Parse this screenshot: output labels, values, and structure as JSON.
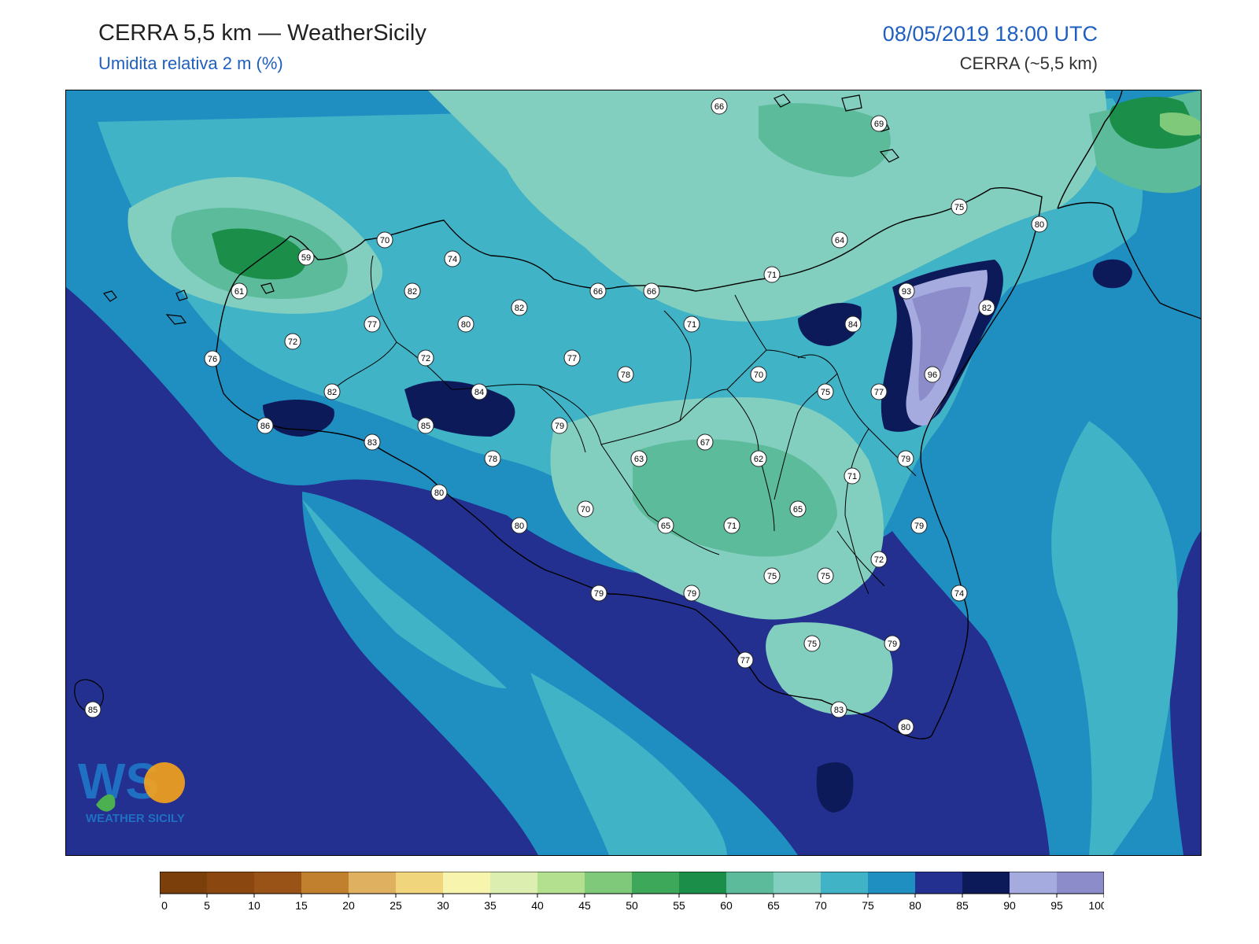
{
  "header": {
    "title": "CERRA 5,5 km — WeatherSicily",
    "subtitle": "Umidita relativa 2 m (%)",
    "datetime": "08/05/2019 18:00 UTC",
    "model": "CERRA (~5,5 km)"
  },
  "logo": {
    "letters": "WS",
    "caption": "WEATHER SICILY"
  },
  "colorbar": {
    "ticks": [
      0,
      5,
      10,
      15,
      20,
      25,
      30,
      35,
      40,
      45,
      50,
      55,
      60,
      65,
      70,
      75,
      80,
      85,
      90,
      95,
      100
    ],
    "colors": [
      "#7a3f0a",
      "#8b4710",
      "#9a5317",
      "#c0802e",
      "#dfb060",
      "#f0d57c",
      "#f7f5ad",
      "#dcefb0",
      "#b2e08f",
      "#7fc97a",
      "#3ea85a",
      "#1b8f4a",
      "#5cbb9a",
      "#82cebf",
      "#40b3c7",
      "#1f8fc2",
      "#23308f",
      "#0d1a5a",
      "#a6abdf",
      "#8c8cca"
    ]
  },
  "map": {
    "stations": [
      {
        "label": "66"
      },
      {
        "label": "69"
      },
      {
        "label": "75"
      },
      {
        "label": "80"
      },
      {
        "label": "64"
      },
      {
        "label": "70"
      },
      {
        "label": "74"
      },
      {
        "label": "59"
      },
      {
        "label": "61"
      },
      {
        "label": "82"
      },
      {
        "label": "66"
      },
      {
        "label": "66"
      },
      {
        "label": "71"
      },
      {
        "label": "93"
      },
      {
        "label": "82"
      },
      {
        "label": "82"
      },
      {
        "label": "77"
      },
      {
        "label": "80"
      },
      {
        "label": "84"
      },
      {
        "label": "71"
      },
      {
        "label": "72"
      },
      {
        "label": "72"
      },
      {
        "label": "77"
      },
      {
        "label": "78"
      },
      {
        "label": "76"
      },
      {
        "label": "70"
      },
      {
        "label": "96"
      },
      {
        "label": "82"
      },
      {
        "label": "84"
      },
      {
        "label": "75"
      },
      {
        "label": "77"
      },
      {
        "label": "86"
      },
      {
        "label": "85"
      },
      {
        "label": "79"
      },
      {
        "label": "83"
      },
      {
        "label": "67"
      },
      {
        "label": "78"
      },
      {
        "label": "63"
      },
      {
        "label": "62"
      },
      {
        "label": "79"
      },
      {
        "label": "71"
      },
      {
        "label": "80"
      },
      {
        "label": "70"
      },
      {
        "label": "65"
      },
      {
        "label": "80"
      },
      {
        "label": "65"
      },
      {
        "label": "71"
      },
      {
        "label": "79"
      },
      {
        "label": "72"
      },
      {
        "label": "75"
      },
      {
        "label": "75"
      },
      {
        "label": "74"
      },
      {
        "label": "79"
      },
      {
        "label": "79"
      },
      {
        "label": "75"
      },
      {
        "label": "79"
      },
      {
        "label": "77"
      },
      {
        "label": "83"
      },
      {
        "label": "85"
      },
      {
        "label": "80"
      }
    ]
  }
}
